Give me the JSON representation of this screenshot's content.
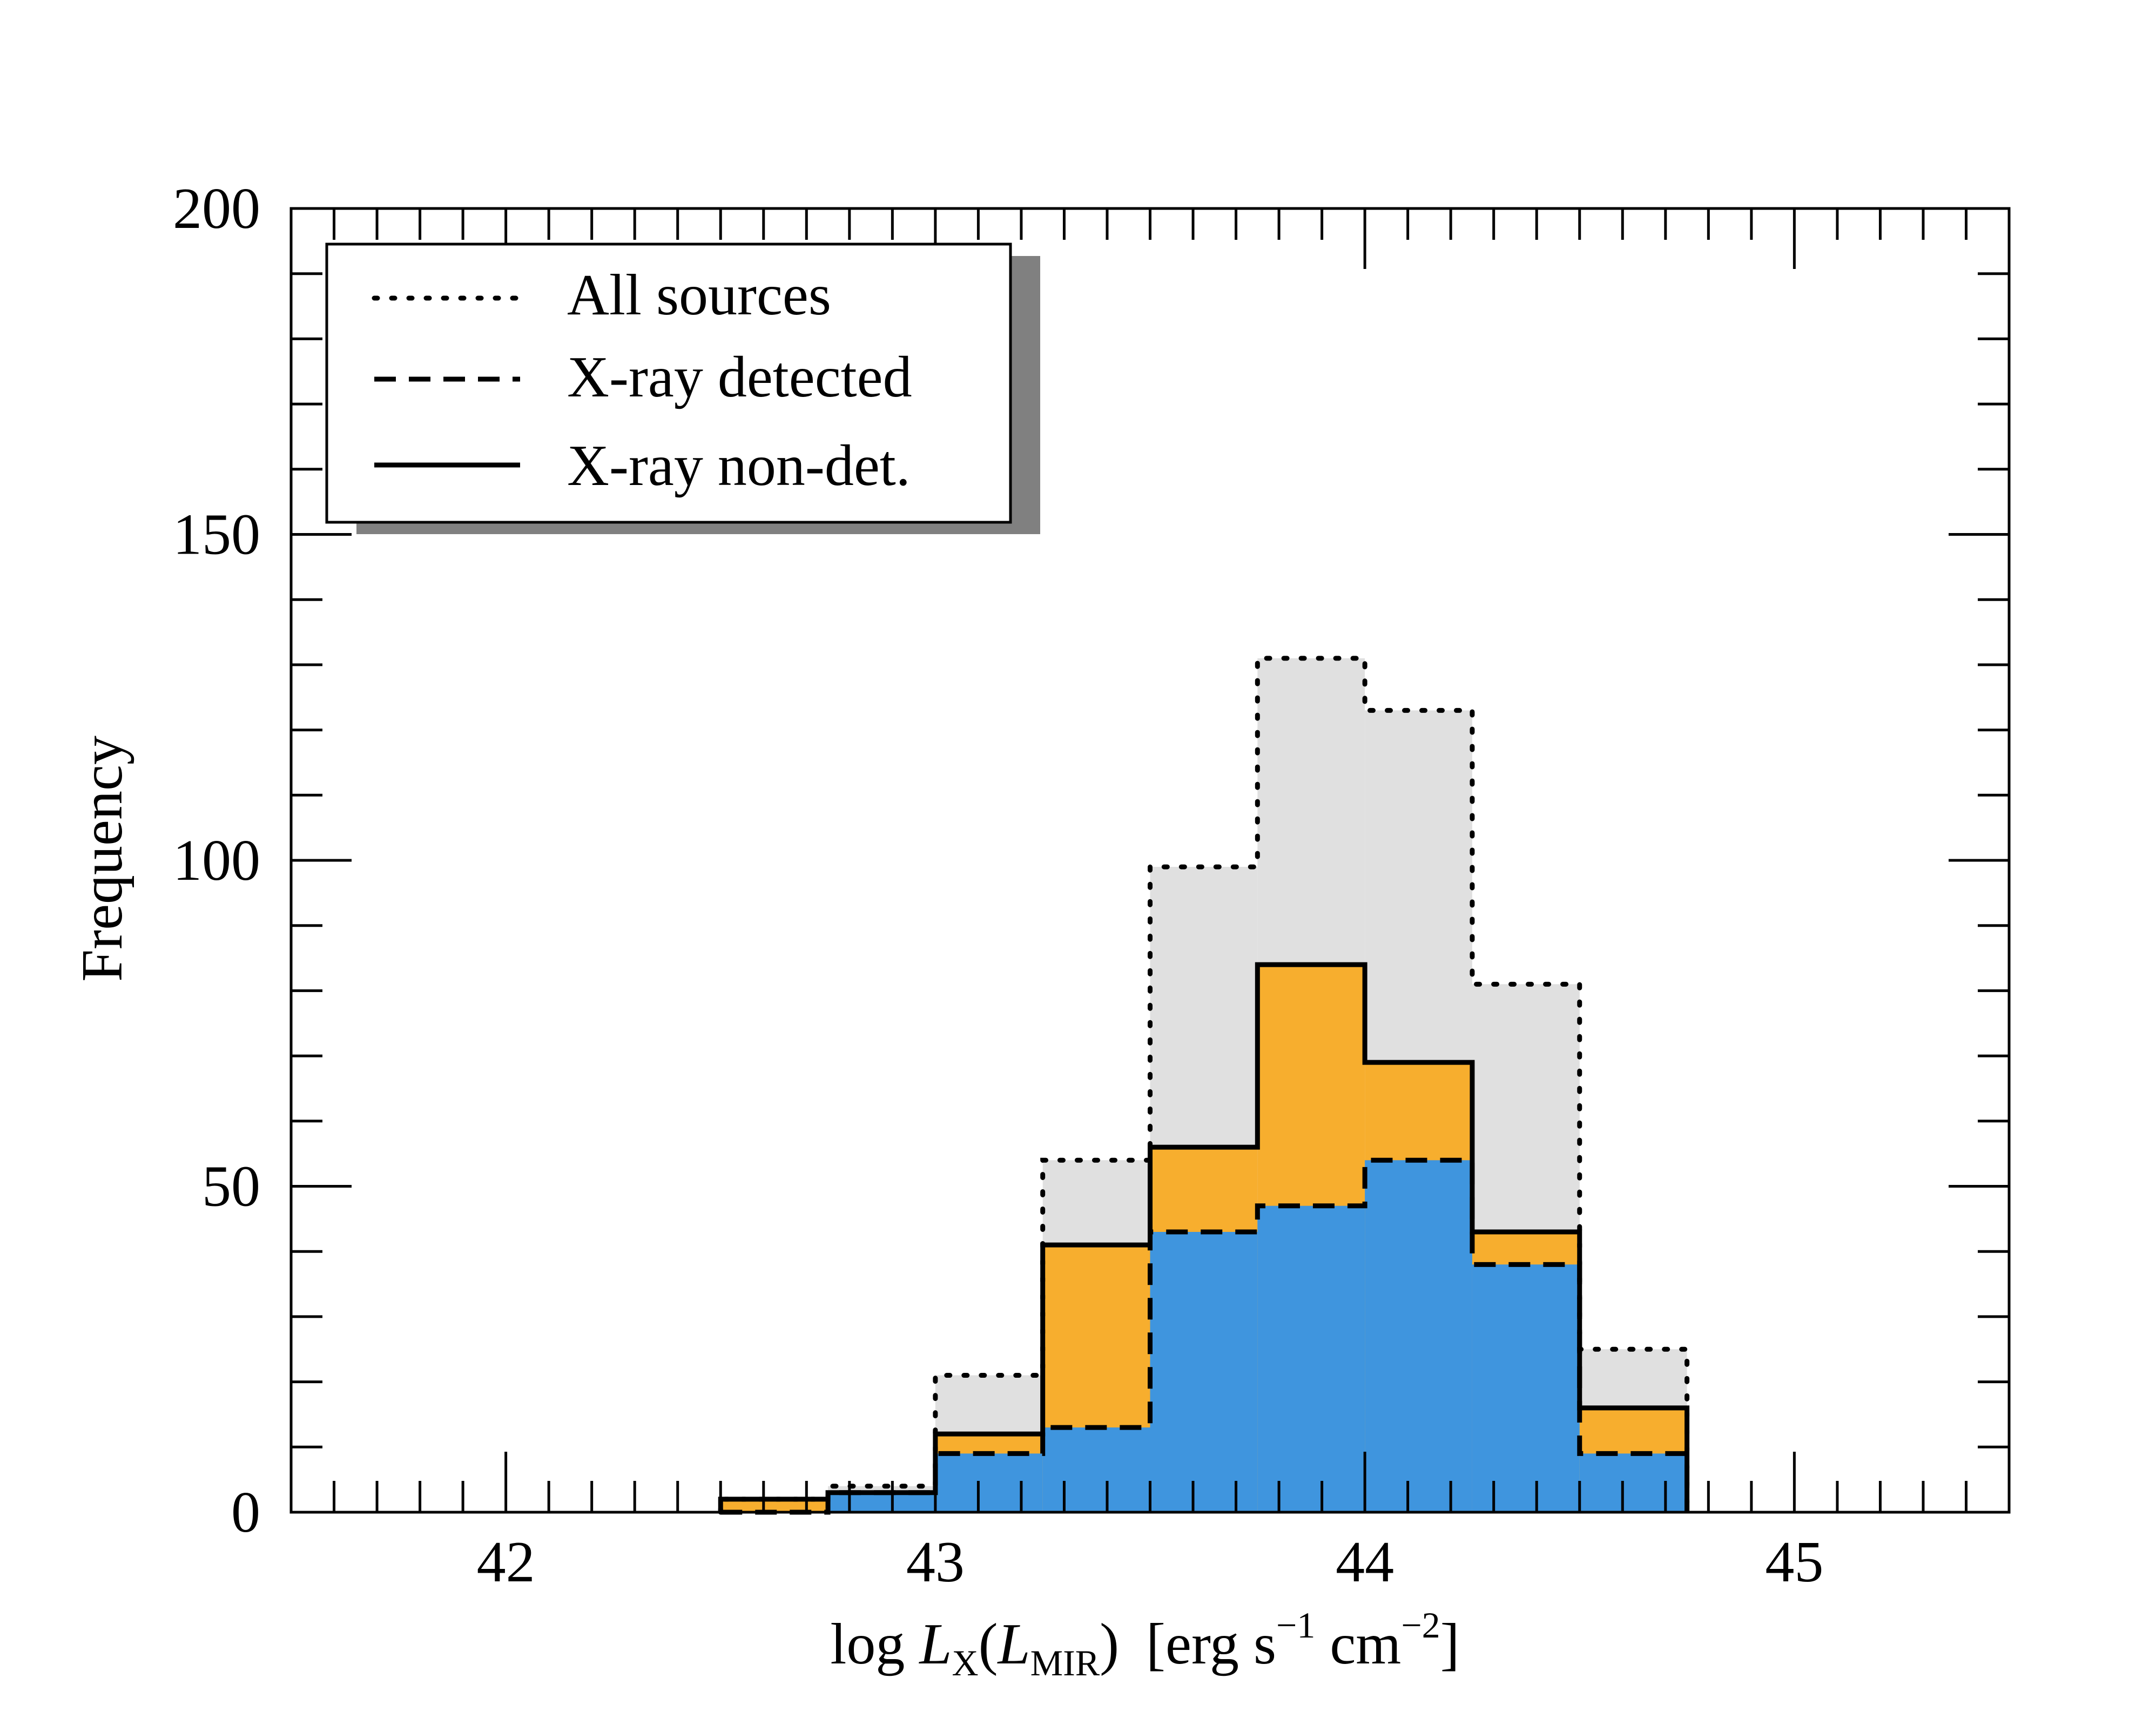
{
  "chart_data": {
    "type": "bar",
    "subtype": "stepped-histogram",
    "xlabel": {
      "prefix": "log ",
      "L": "L",
      "sub_x": "X",
      "paren_open": "(",
      "L2": "L",
      "sub_mir": "MIR",
      "paren_close": ")",
      "units_open": "[erg s",
      "exp1": "−1",
      "units_mid": " cm",
      "exp2": "−2",
      "units_close": "]"
    },
    "ylabel": "Frequency",
    "xlim": [
      41.5,
      45.5
    ],
    "ylim": [
      0,
      200
    ],
    "x_ticks": [
      42,
      43,
      44,
      45
    ],
    "x_tick_labels": [
      "42",
      "43",
      "44",
      "45"
    ],
    "y_ticks": [
      0,
      50,
      100,
      150,
      200
    ],
    "y_tick_labels": [
      "0",
      "50",
      "100",
      "150",
      "200"
    ],
    "bin_width": 0.25,
    "legend": {
      "position": "top-left",
      "entries": [
        {
          "label": "All sources",
          "linestyle": "dotted"
        },
        {
          "label": "X-ray detected",
          "linestyle": "dashed"
        },
        {
          "label": "X-ray non-det.",
          "linestyle": "solid"
        }
      ]
    },
    "series": [
      {
        "name": "All sources",
        "linestyle": "dotted",
        "fill": "#e0e0e0",
        "bins": [
          [
            42.5,
            2
          ],
          [
            42.75,
            4
          ],
          [
            43.0,
            21
          ],
          [
            43.25,
            54
          ],
          [
            43.5,
            99
          ],
          [
            43.75,
            131
          ],
          [
            44.0,
            123
          ],
          [
            44.25,
            81
          ],
          [
            44.5,
            25
          ]
        ]
      },
      {
        "name": "X-ray non-det.",
        "linestyle": "solid",
        "fill": "#f7ae2e",
        "bins": [
          [
            42.5,
            2
          ],
          [
            42.75,
            3
          ],
          [
            43.0,
            12
          ],
          [
            43.25,
            41
          ],
          [
            43.5,
            56
          ],
          [
            43.75,
            84
          ],
          [
            44.0,
            69
          ],
          [
            44.25,
            43
          ],
          [
            44.5,
            16
          ]
        ]
      },
      {
        "name": "X-ray detected",
        "linestyle": "dashed",
        "fill": "#3f95de",
        "bins": [
          [
            42.5,
            0
          ],
          [
            42.75,
            3
          ],
          [
            43.0,
            9
          ],
          [
            43.25,
            13
          ],
          [
            43.5,
            43
          ],
          [
            43.75,
            47
          ],
          [
            44.0,
            54
          ],
          [
            44.25,
            38
          ],
          [
            44.5,
            9
          ]
        ]
      }
    ]
  }
}
